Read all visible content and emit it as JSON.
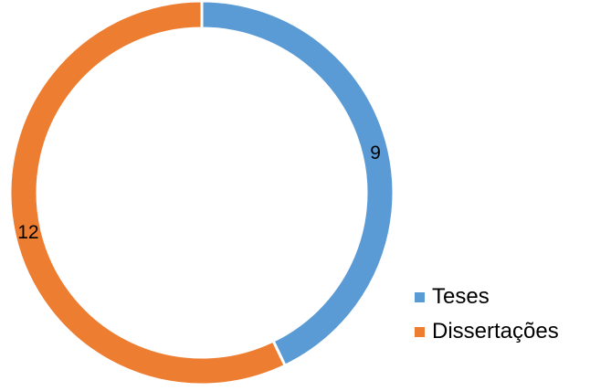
{
  "chart_data": {
    "type": "pie",
    "variant": "doughnut",
    "categories": [
      "Teses",
      "Dissertações"
    ],
    "values": [
      9,
      12
    ],
    "colors": [
      "#5B9BD5",
      "#ED7D31"
    ],
    "data_labels": [
      "9",
      "12"
    ],
    "legend": {
      "placement": "bottom-right",
      "entries": [
        "Teses",
        "Dissertações"
      ]
    }
  }
}
